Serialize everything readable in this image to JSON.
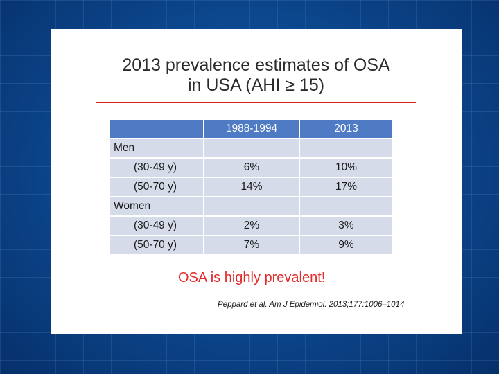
{
  "slide": {
    "title_line1": "2013 prevalence estimates of OSA",
    "title_line2": "in USA (AHI ≥ 15)",
    "callout": "OSA is highly prevalent!",
    "citation": "Peppard et al. Am J Epidemiol. 2013;177:1006–1014"
  },
  "table": {
    "headers": [
      "",
      "1988-1994",
      "2013"
    ],
    "groups": [
      {
        "label": "Men",
        "rows": [
          {
            "age": "(30-49 y)",
            "v1988": "6%",
            "v2013": "10%"
          },
          {
            "age": "(50-70 y)",
            "v1988": "14%",
            "v2013": "17%"
          }
        ]
      },
      {
        "label": "Women",
        "rows": [
          {
            "age": "(30-49 y)",
            "v1988": "2%",
            "v2013": "3%"
          },
          {
            "age": "(50-70 y)",
            "v1988": "7%",
            "v2013": "9%"
          }
        ]
      }
    ]
  },
  "colors": {
    "background": "#0a3f7e",
    "header_fill": "#4f7bc4",
    "cell_fill": "#d5dbe9",
    "accent_red": "#e32a2a"
  }
}
